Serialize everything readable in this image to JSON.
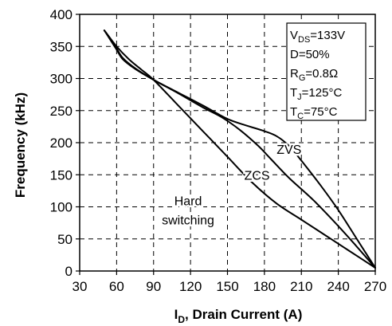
{
  "chart_data": {
    "type": "line",
    "xlabel_main": "I",
    "xlabel_sub": "D",
    "xlabel_rest": ", Drain Current (A)",
    "ylabel": "Frequency (kHz)",
    "xlim": [
      30,
      270
    ],
    "ylim": [
      0,
      400
    ],
    "xticks": [
      30,
      60,
      90,
      120,
      150,
      180,
      210,
      240,
      270
    ],
    "yticks": [
      0,
      50,
      100,
      150,
      200,
      250,
      300,
      350,
      400
    ],
    "grid": true,
    "conditions": [
      {
        "main": "V",
        "sub": "DS",
        "rest": "=133V"
      },
      {
        "main": "D=50%",
        "sub": "",
        "rest": ""
      },
      {
        "main": "R",
        "sub": "G",
        "rest": "=0.8Ω"
      },
      {
        "main": "T",
        "sub": "J",
        "rest": "=125°C"
      },
      {
        "main": "T",
        "sub": "C",
        "rest": "=75°C"
      }
    ],
    "series": [
      {
        "name": "ZVS",
        "x": [
          50,
          55,
          60,
          65,
          75,
          90,
          110,
          130,
          150,
          165,
          180,
          190,
          200,
          210,
          225,
          240,
          255,
          270
        ],
        "y": [
          375,
          360,
          345,
          330,
          315,
          298,
          278,
          258,
          237,
          227,
          218,
          210,
          195,
          172,
          135,
          95,
          50,
          5
        ]
      },
      {
        "name": "ZCS",
        "x": [
          50,
          55,
          60,
          65,
          75,
          90,
          110,
          130,
          145,
          160,
          175,
          185,
          200,
          220,
          240,
          255,
          270
        ],
        "y": [
          375,
          362,
          347,
          332,
          316,
          298,
          277,
          255,
          240,
          220,
          195,
          175,
          145,
          110,
          70,
          38,
          5
        ]
      },
      {
        "name": "Hard switching",
        "x": [
          50,
          60,
          70,
          80,
          90,
          110,
          130,
          150,
          170,
          190,
          210,
          230,
          250,
          270
        ],
        "y": [
          375,
          350,
          330,
          314,
          298,
          258,
          218,
          178,
          138,
          105,
          80,
          55,
          30,
          5
        ]
      }
    ],
    "annotations": [
      {
        "text": "ZVS",
        "x": 200,
        "y": 190
      },
      {
        "text": "ZCS",
        "x": 174,
        "y": 150
      },
      {
        "text": "Hard",
        "x": 118,
        "y": 110
      },
      {
        "text": "switching",
        "x": 118,
        "y": 80
      }
    ]
  }
}
